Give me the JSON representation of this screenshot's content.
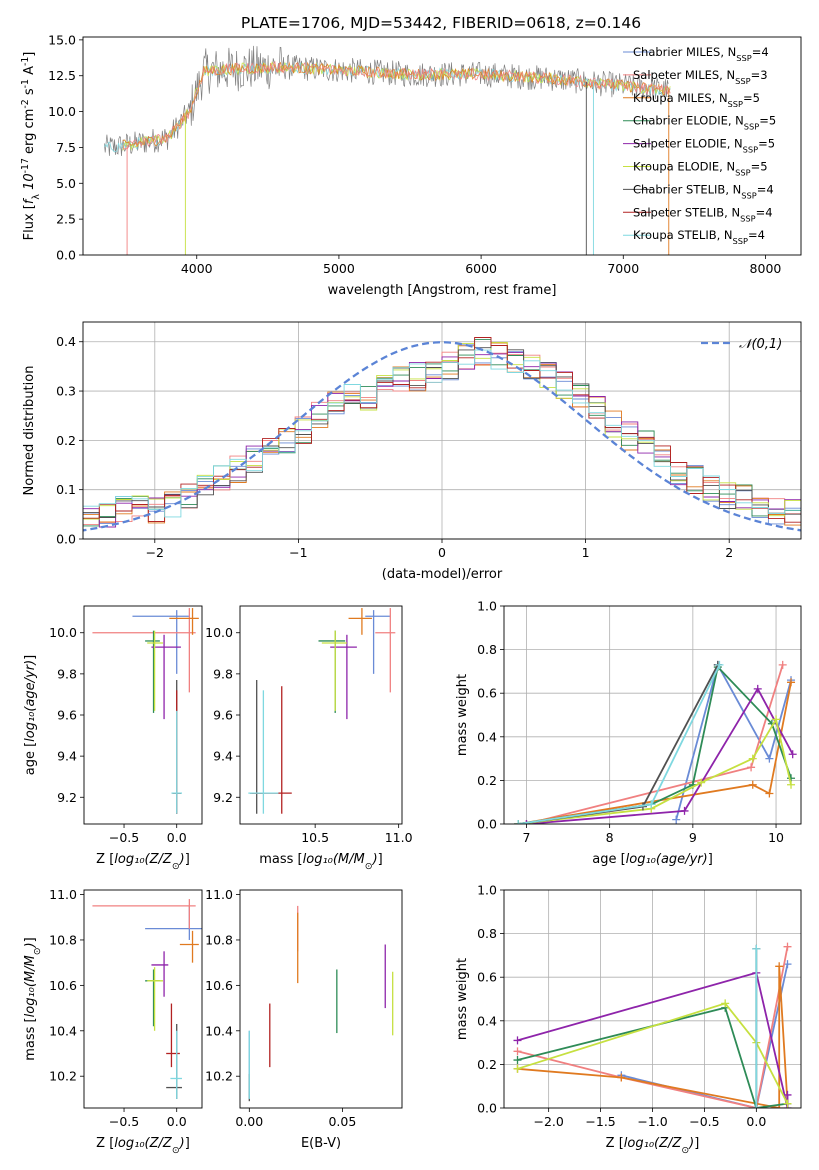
{
  "title": "PLATE=1706, MJD=53442, FIBERID=0618, z=0.146",
  "series_colors": [
    "#6a8bd6",
    "#f08080",
    "#e07a20",
    "#2e8b57",
    "#8e24aa",
    "#c6e040",
    "#505050",
    "#b22222",
    "#7fd8e0"
  ],
  "legend_entries": [
    "Chabrier MILES, N$_{SSP}$=4",
    "Salpeter MILES, N$_{SSP}$=3",
    "Kroupa MILES, N$_{SSP}$=5",
    "Chabrier ELODIE, N$_{SSP}$=5",
    "Salpeter ELODIE, N$_{SSP}$=5",
    "Kroupa ELODIE, N$_{SSP}$=5",
    "Chabrier STELIB, N$_{SSP}$=4",
    "Salpeter STELIB, N$_{SSP}$=4",
    "Kroupa STELIB, N$_{SSP}$=4"
  ],
  "chart_data": [
    {
      "id": "spectrum",
      "type": "line",
      "xlabel": "wavelength [Angstrom, rest frame]",
      "ylabel": "Flux [$f_\\lambda 10^{-17}$ erg cm$^{-2}$ s$^{-1}$ A$^{-1}$]",
      "xlim": [
        3200,
        8250
      ],
      "ylim": [
        0,
        15.2
      ],
      "xticks": [
        4000,
        5000,
        6000,
        7000,
        8000
      ],
      "yticks": [
        0.0,
        2.5,
        5.0,
        7.5,
        10.0,
        12.5,
        15.0
      ],
      "legend_location": "upper right",
      "approx_continuum": {
        "x": [
          3400,
          3600,
          3800,
          3950,
          4050,
          4300,
          4600,
          5000,
          5500,
          6000,
          6500,
          7000,
          7300
        ],
        "y": [
          7.5,
          7.8,
          8.2,
          10.0,
          12.8,
          13.0,
          13.1,
          12.9,
          12.6,
          12.6,
          12.3,
          11.8,
          11.5
        ]
      }
    },
    {
      "id": "residuals",
      "type": "histogram",
      "xlabel": "(data-model)/error",
      "ylabel": "Normed distribution",
      "xlim": [
        -2.5,
        2.5
      ],
      "ylim": [
        0,
        0.44
      ],
      "xticks": [
        -2,
        -1,
        0,
        1,
        2
      ],
      "yticks": [
        0.0,
        0.1,
        0.2,
        0.3,
        0.4
      ],
      "grid": true,
      "legend_entry": "$\\mathcal{N}(0,1)$",
      "legend_location": "upper right",
      "bins_approx": [
        0.05,
        0.05,
        0.06,
        0.06,
        0.06,
        0.07,
        0.09,
        0.1,
        0.12,
        0.14,
        0.16,
        0.18,
        0.2,
        0.22,
        0.25,
        0.27,
        0.29,
        0.29,
        0.31,
        0.32,
        0.33,
        0.34,
        0.35,
        0.37,
        0.38,
        0.37,
        0.36,
        0.35,
        0.33,
        0.31,
        0.29,
        0.26,
        0.23,
        0.21,
        0.19,
        0.16,
        0.14,
        0.12,
        0.1,
        0.09,
        0.08,
        0.07,
        0.06,
        0.05
      ]
    },
    {
      "id": "age_vs_Z",
      "type": "errorbar",
      "xlabel": "Z [$\\log_{10}(Z/Z_\\odot)$]",
      "ylabel": "age  [$\\log_{10}(age/yr)$]",
      "xlim": [
        -0.88,
        0.24
      ],
      "ylim": [
        9.07,
        10.13
      ],
      "xticks": [
        -0.5,
        0.0
      ],
      "yticks": [
        9.2,
        9.4,
        9.6,
        9.8,
        10.0
      ],
      "points": [
        {
          "s": 0,
          "x": 0.0,
          "y": 10.08,
          "xerr": [
            0.42,
            0.12
          ],
          "yerr": [
            0.28,
            0.03
          ]
        },
        {
          "s": 1,
          "x": 0.12,
          "y": 10.0,
          "xerr": [
            0.92,
            0.06
          ],
          "yerr": [
            0.29,
            0.12
          ]
        },
        {
          "s": 2,
          "x": 0.15,
          "y": 10.07,
          "xerr": [
            0.22,
            0.06
          ],
          "yerr": [
            0.08,
            0.05
          ]
        },
        {
          "s": 3,
          "x": -0.22,
          "y": 9.96,
          "xerr": [
            0.08,
            0.06
          ],
          "yerr": [
            0.35,
            0.05
          ]
        },
        {
          "s": 4,
          "x": -0.12,
          "y": 9.93,
          "xerr": [
            0.12,
            0.16
          ],
          "yerr": [
            0.35,
            0.06
          ]
        },
        {
          "s": 5,
          "x": -0.21,
          "y": 9.95,
          "xerr": [
            0.07,
            0.08
          ],
          "yerr": [
            0.33,
            0.06
          ]
        },
        {
          "s": 6,
          "x": 0.0,
          "y": 9.22,
          "xerr": [
            0.04,
            0.04
          ],
          "yerr": [
            0.1,
            0.55
          ]
        },
        {
          "s": 7,
          "x": 0.0,
          "y": 9.22,
          "xerr": [
            0.04,
            0.04
          ],
          "yerr": [
            0.1,
            0.5
          ]
        },
        {
          "s": 8,
          "x": 0.0,
          "y": 9.22,
          "xerr": [
            0.05,
            0.05
          ],
          "yerr": [
            0.1,
            0.4
          ]
        }
      ]
    },
    {
      "id": "age_vs_mass",
      "type": "errorbar",
      "xlabel": "mass [$\\log_{10}(M/M_\\odot)$]",
      "ylabel": "",
      "xlim": [
        10.05,
        11.02
      ],
      "ylim": [
        9.07,
        10.13
      ],
      "xticks": [
        10.5,
        11.0
      ],
      "yticks": [
        9.2,
        9.4,
        9.6,
        9.8,
        10.0
      ],
      "points": [
        {
          "s": 0,
          "x": 10.85,
          "y": 10.08,
          "xerr": [
            0.05,
            0.1
          ],
          "yerr": [
            0.28,
            0.03
          ]
        },
        {
          "s": 1,
          "x": 10.95,
          "y": 10.0,
          "xerr": [
            0.09,
            0.03
          ],
          "yerr": [
            0.29,
            0.12
          ]
        },
        {
          "s": 2,
          "x": 10.78,
          "y": 10.07,
          "xerr": [
            0.08,
            0.06
          ],
          "yerr": [
            0.08,
            0.05
          ]
        },
        {
          "s": 3,
          "x": 10.62,
          "y": 9.96,
          "xerr": [
            0.1,
            0.06
          ],
          "yerr": [
            0.35,
            0.05
          ]
        },
        {
          "s": 4,
          "x": 10.69,
          "y": 9.93,
          "xerr": [
            0.1,
            0.06
          ],
          "yerr": [
            0.35,
            0.06
          ]
        },
        {
          "s": 5,
          "x": 10.62,
          "y": 9.95,
          "xerr": [
            0.08,
            0.07
          ],
          "yerr": [
            0.33,
            0.06
          ]
        },
        {
          "s": 6,
          "x": 10.15,
          "y": 9.22,
          "xerr": [
            0.04,
            0.04
          ],
          "yerr": [
            0.1,
            0.55
          ]
        },
        {
          "s": 7,
          "x": 10.3,
          "y": 9.22,
          "xerr": [
            0.18,
            0.06
          ],
          "yerr": [
            0.1,
            0.52
          ]
        },
        {
          "s": 8,
          "x": 10.19,
          "y": 9.22,
          "xerr": [
            0.09,
            0.09
          ],
          "yerr": [
            0.1,
            0.5
          ]
        }
      ]
    },
    {
      "id": "weight_vs_age",
      "type": "line",
      "xlabel": "age  [$\\log_{10}(age/yr)$]",
      "ylabel": "mass weight",
      "xlim": [
        6.73,
        10.3
      ],
      "ylim": [
        0,
        1.0
      ],
      "xticks": [
        7,
        8,
        9,
        10
      ],
      "yticks": [
        0.0,
        0.2,
        0.4,
        0.6,
        0.8,
        1.0
      ],
      "grid": true,
      "series": [
        {
          "s": 0,
          "x": [
            8.8,
            9.3,
            9.92,
            10.18
          ],
          "y": [
            0.02,
            0.73,
            0.3,
            0.66
          ]
        },
        {
          "s": 1,
          "x": [
            7.0,
            9.7,
            10.08
          ],
          "y": [
            0.0,
            0.26,
            0.73
          ]
        },
        {
          "s": 2,
          "x": [
            6.9,
            9.72,
            9.92,
            10.18
          ],
          "y": [
            0.0,
            0.18,
            0.14,
            0.65
          ]
        },
        {
          "s": 3,
          "x": [
            6.9,
            8.5,
            9.0,
            9.3,
            9.95,
            10.18
          ],
          "y": [
            0.0,
            0.09,
            0.18,
            0.72,
            0.46,
            0.21
          ]
        },
        {
          "s": 4,
          "x": [
            7.0,
            8.9,
            9.78,
            10.2
          ],
          "y": [
            0.0,
            0.06,
            0.62,
            0.32
          ]
        },
        {
          "s": 5,
          "x": [
            6.9,
            8.5,
            9.1,
            9.72,
            10.0,
            10.18
          ],
          "y": [
            0.0,
            0.07,
            0.19,
            0.3,
            0.48,
            0.18
          ]
        },
        {
          "s": 6,
          "x": [
            6.9,
            8.4,
            9.3
          ],
          "y": [
            0.0,
            0.08,
            0.73
          ]
        },
        {
          "s": 8,
          "x": [
            6.9,
            8.5,
            9.32
          ],
          "y": [
            0.0,
            0.09,
            0.73
          ]
        }
      ]
    },
    {
      "id": "mass_vs_Z",
      "type": "errorbar",
      "xlabel": "Z [$\\log_{10}(Z/Z_\\odot)$]",
      "ylabel": "mass [$\\log_{10}(M/M_\\odot)$]",
      "xlim": [
        -0.88,
        0.24
      ],
      "ylim": [
        10.06,
        11.02
      ],
      "xticks": [
        -0.5,
        0.0
      ],
      "yticks": [
        10.2,
        10.4,
        10.6,
        10.8,
        11.0
      ],
      "points": [
        {
          "s": 0,
          "x": 0.12,
          "y": 10.85,
          "xerr": [
            0.42,
            0.12
          ],
          "yerr": [
            0.05,
            0.1
          ]
        },
        {
          "s": 1,
          "x": 0.12,
          "y": 10.95,
          "xerr": [
            0.92,
            0.06
          ],
          "yerr": [
            0.1,
            0.03
          ]
        },
        {
          "s": 2,
          "x": 0.15,
          "y": 10.78,
          "xerr": [
            0.12,
            0.06
          ],
          "yerr": [
            0.08,
            0.06
          ]
        },
        {
          "s": 3,
          "x": -0.22,
          "y": 10.62,
          "xerr": [
            0.08,
            0.06
          ],
          "yerr": [
            0.2,
            0.05
          ]
        },
        {
          "s": 4,
          "x": -0.12,
          "y": 10.69,
          "xerr": [
            0.12,
            0.04
          ],
          "yerr": [
            0.14,
            0.06
          ]
        },
        {
          "s": 5,
          "x": -0.21,
          "y": 10.62,
          "xerr": [
            0.07,
            0.08
          ],
          "yerr": [
            0.22,
            0.06
          ]
        },
        {
          "s": 6,
          "x": 0.0,
          "y": 10.15,
          "xerr": [
            0.1,
            0.05
          ],
          "yerr": [
            0.05,
            0.28
          ]
        },
        {
          "s": 7,
          "x": -0.05,
          "y": 10.3,
          "xerr": [
            0.05,
            0.08
          ],
          "yerr": [
            0.06,
            0.22
          ]
        },
        {
          "s": 8,
          "x": 0.0,
          "y": 10.19,
          "xerr": [
            0.06,
            0.05
          ],
          "yerr": [
            0.09,
            0.21
          ]
        }
      ]
    },
    {
      "id": "mass_vs_EBV",
      "type": "errorbar",
      "xlabel": "E(B-V)",
      "ylabel": "",
      "xlim": [
        -0.005,
        0.082
      ],
      "ylim": [
        10.06,
        11.02
      ],
      "xticks": [
        0.0,
        0.05
      ],
      "yticks": [
        10.2,
        10.4,
        10.6,
        10.8,
        11.0
      ],
      "points": [
        {
          "s": 0,
          "x": 0.0,
          "y": 10.22,
          "xerr": [
            0,
            0
          ],
          "yerr": [
            0.12,
            0.18
          ]
        },
        {
          "s": 1,
          "x": 0.026,
          "y": 10.85,
          "xerr": [
            0,
            0
          ],
          "yerr": [
            0.1,
            0.1
          ]
        },
        {
          "s": 2,
          "x": 0.026,
          "y": 10.78,
          "xerr": [
            0,
            0
          ],
          "yerr": [
            0.17,
            0.14
          ]
        },
        {
          "s": 3,
          "x": 0.047,
          "y": 10.55,
          "xerr": [
            0,
            0
          ],
          "yerr": [
            0.16,
            0.12
          ]
        },
        {
          "s": 4,
          "x": 0.073,
          "y": 10.64,
          "xerr": [
            0,
            0
          ],
          "yerr": [
            0.14,
            0.14
          ]
        },
        {
          "s": 5,
          "x": 0.077,
          "y": 10.52,
          "xerr": [
            0,
            0
          ],
          "yerr": [
            0.14,
            0.14
          ]
        },
        {
          "s": 6,
          "x": 0.0,
          "y": 10.15,
          "xerr": [
            0,
            0
          ],
          "yerr": [
            0.06,
            0.06
          ]
        },
        {
          "s": 7,
          "x": 0.011,
          "y": 10.38,
          "xerr": [
            0,
            0
          ],
          "yerr": [
            0.14,
            0.14
          ]
        },
        {
          "s": 8,
          "x": 0.0,
          "y": 10.2,
          "xerr": [
            0,
            0
          ],
          "yerr": [
            0.1,
            0.2
          ]
        }
      ]
    },
    {
      "id": "weight_vs_Z",
      "type": "line",
      "xlabel": "Z [$\\log_{10}(Z/Z_\\odot)$]",
      "ylabel": "mass weight",
      "xlim": [
        -2.43,
        0.43
      ],
      "ylim": [
        0,
        1.0
      ],
      "xticks": [
        -2.0,
        -1.5,
        -1.0,
        -0.5,
        0.0
      ],
      "yticks": [
        0.0,
        0.2,
        0.4,
        0.6,
        0.8,
        1.0
      ],
      "grid": true,
      "series": [
        {
          "s": 0,
          "x": [
            -1.3,
            0.0,
            0.3
          ],
          "y": [
            0.15,
            0.0,
            0.66
          ]
        },
        {
          "s": 1,
          "x": [
            -2.3,
            -1.3,
            0.0,
            0.3
          ],
          "y": [
            0.26,
            0.14,
            0.0,
            0.74
          ]
        },
        {
          "s": 2,
          "x": [
            -2.3,
            -1.3,
            0.22,
            0.22,
            0.3
          ],
          "y": [
            0.18,
            0.14,
            0.0,
            0.65,
            0.02
          ]
        },
        {
          "s": 3,
          "x": [
            -2.3,
            -0.3,
            0.0,
            0.3
          ],
          "y": [
            0.22,
            0.46,
            0.0,
            0.02
          ]
        },
        {
          "s": 4,
          "x": [
            -2.3,
            0.0,
            0.3,
            0.3
          ],
          "y": [
            0.31,
            0.62,
            0.0,
            0.06
          ]
        },
        {
          "s": 5,
          "x": [
            -2.3,
            -0.3,
            0.0,
            0.3
          ],
          "y": [
            0.18,
            0.48,
            0.3,
            0.02
          ]
        },
        {
          "s": 6,
          "x": [
            0.0,
            0.0
          ],
          "y": [
            0.0,
            0.73
          ]
        },
        {
          "s": 8,
          "x": [
            0.0,
            0.0
          ],
          "y": [
            0.0,
            0.73
          ]
        }
      ]
    }
  ]
}
